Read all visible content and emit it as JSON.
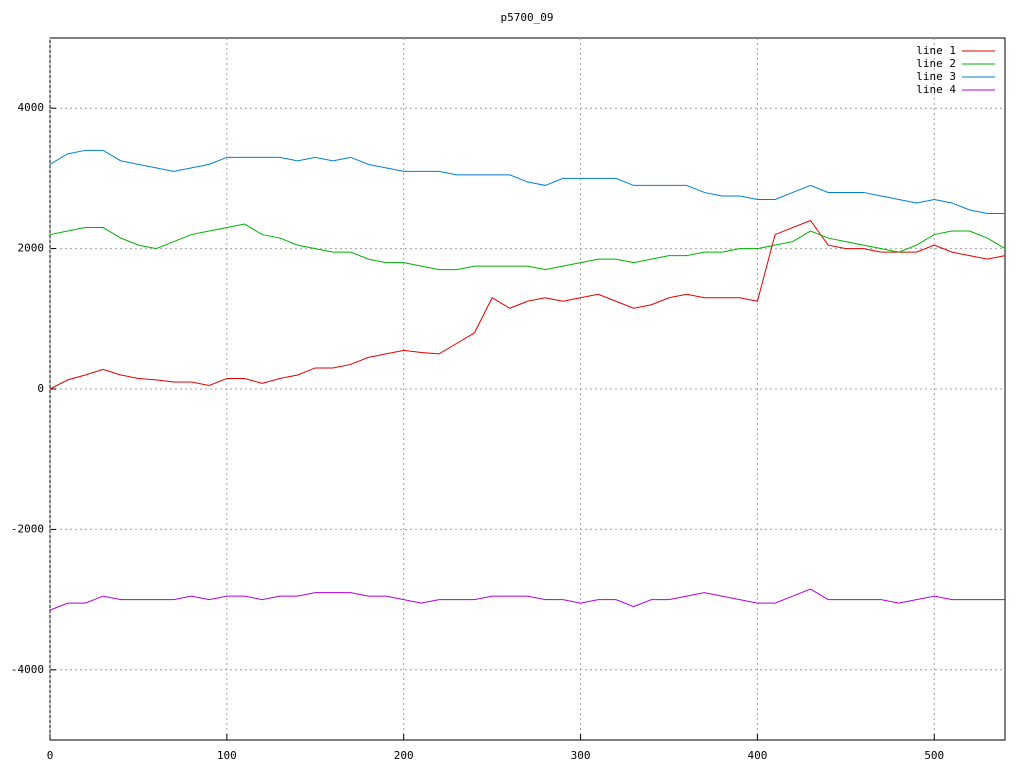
{
  "chart_data": {
    "type": "line",
    "title": "p5700_09",
    "x": [
      0,
      10,
      20,
      30,
      40,
      50,
      60,
      70,
      80,
      90,
      100,
      110,
      120,
      130,
      140,
      150,
      160,
      170,
      180,
      190,
      200,
      210,
      220,
      230,
      240,
      250,
      260,
      270,
      280,
      290,
      300,
      310,
      320,
      330,
      340,
      350,
      360,
      370,
      380,
      390,
      400,
      410,
      420,
      430,
      440,
      450,
      460,
      470,
      480,
      490,
      500,
      510,
      520,
      530,
      540
    ],
    "series": [
      {
        "name": "line 1",
        "color": "#e00000",
        "values": [
          0,
          130,
          200,
          280,
          200,
          150,
          130,
          100,
          100,
          50,
          150,
          150,
          80,
          150,
          200,
          300,
          300,
          350,
          450,
          500,
          550,
          520,
          500,
          650,
          800,
          1300,
          1150,
          1250,
          1300,
          1250,
          1300,
          1350,
          1250,
          1150,
          1200,
          1300,
          1350,
          1300,
          1300,
          1300,
          1250,
          2200,
          2300,
          2400,
          2050,
          2000,
          2000,
          1950,
          1950,
          1950,
          2050,
          1950,
          1900,
          1850,
          1900
        ]
      },
      {
        "name": "line 2",
        "color": "#00b000",
        "values": [
          2200,
          2250,
          2300,
          2300,
          2150,
          2050,
          2000,
          2100,
          2200,
          2250,
          2300,
          2350,
          2200,
          2150,
          2050,
          2000,
          1950,
          1950,
          1850,
          1800,
          1800,
          1750,
          1700,
          1700,
          1750,
          1750,
          1750,
          1750,
          1700,
          1750,
          1800,
          1850,
          1850,
          1800,
          1850,
          1900,
          1900,
          1950,
          1950,
          2000,
          2000,
          2050,
          2100,
          2250,
          2150,
          2100,
          2050,
          2000,
          1950,
          2050,
          2200,
          2250,
          2250,
          2150,
          2000
        ]
      },
      {
        "name": "line 3",
        "color": "#0080d0",
        "values": [
          3200,
          3350,
          3400,
          3400,
          3250,
          3200,
          3150,
          3100,
          3150,
          3200,
          3300,
          3300,
          3300,
          3300,
          3250,
          3300,
          3250,
          3300,
          3200,
          3150,
          3100,
          3100,
          3100,
          3050,
          3050,
          3050,
          3050,
          2950,
          2900,
          3000,
          3000,
          3000,
          3000,
          2900,
          2900,
          2900,
          2900,
          2800,
          2750,
          2750,
          2700,
          2700,
          2800,
          2900,
          2800,
          2800,
          2800,
          2750,
          2700,
          2650,
          2700,
          2650,
          2550,
          2500,
          2500
        ]
      },
      {
        "name": "line 4",
        "color": "#b000e0",
        "values": [
          -3150,
          -3050,
          -3050,
          -2950,
          -3000,
          -3000,
          -3000,
          -3000,
          -2950,
          -3000,
          -2950,
          -2950,
          -3000,
          -2950,
          -2950,
          -2900,
          -2900,
          -2900,
          -2950,
          -2950,
          -3000,
          -3050,
          -3000,
          -3000,
          -3000,
          -2950,
          -2950,
          -2950,
          -3000,
          -3000,
          -3050,
          -3000,
          -3000,
          -3100,
          -3000,
          -3000,
          -2950,
          -2900,
          -2950,
          -3000,
          -3050,
          -3050,
          -2950,
          -2850,
          -3000,
          -3000,
          -3000,
          -3000,
          -3050,
          -3000,
          -2950,
          -3000,
          -3000,
          -3000,
          -3000
        ]
      }
    ],
    "xlim": [
      0,
      540
    ],
    "xticks": [
      0,
      100,
      200,
      300,
      400,
      500
    ],
    "ylim": [
      -5000,
      5000
    ],
    "yticks": [
      -4000,
      -2000,
      0,
      2000,
      4000
    ],
    "grid": true,
    "legend": "top-right"
  }
}
